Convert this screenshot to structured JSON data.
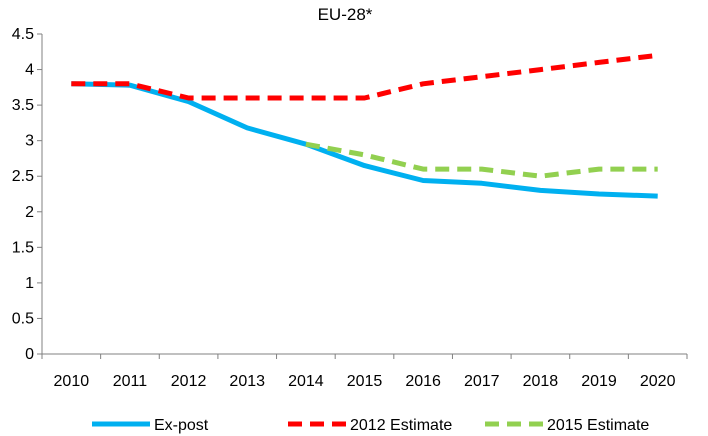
{
  "chart_data": {
    "type": "line",
    "title": "EU-28*",
    "xlabel": "",
    "ylabel": "",
    "categories": [
      "2010",
      "2011",
      "2012",
      "2013",
      "2014",
      "2015",
      "2016",
      "2017",
      "2018",
      "2019",
      "2020"
    ],
    "ylim": [
      0,
      4.5
    ],
    "y_ticks": [
      0,
      0.5,
      1,
      1.5,
      2,
      2.5,
      3,
      3.5,
      4,
      4.5
    ],
    "y_tick_labels": [
      "0",
      "0.5",
      "1",
      "1.5",
      "2",
      "2.5",
      "3",
      "3.5",
      "4",
      "4.5"
    ],
    "grid": false,
    "legend_position": "bottom",
    "series": [
      {
        "name": "Ex-post",
        "color": "#00b0f0",
        "style": "solid",
        "values": [
          3.8,
          3.78,
          3.55,
          3.18,
          2.95,
          2.65,
          2.44,
          2.4,
          2.3,
          2.25,
          2.22
        ]
      },
      {
        "name": "2012 Estimate",
        "color": "#ff0000",
        "style": "dashed",
        "values": [
          3.8,
          3.8,
          3.6,
          3.6,
          3.6,
          3.6,
          3.8,
          3.9,
          4.0,
          4.1,
          4.2
        ]
      },
      {
        "name": "2015 Estimate",
        "color": "#92d050",
        "style": "dashed",
        "values": [
          null,
          null,
          null,
          null,
          2.95,
          2.8,
          2.6,
          2.6,
          2.5,
          2.6,
          2.6
        ]
      }
    ]
  }
}
